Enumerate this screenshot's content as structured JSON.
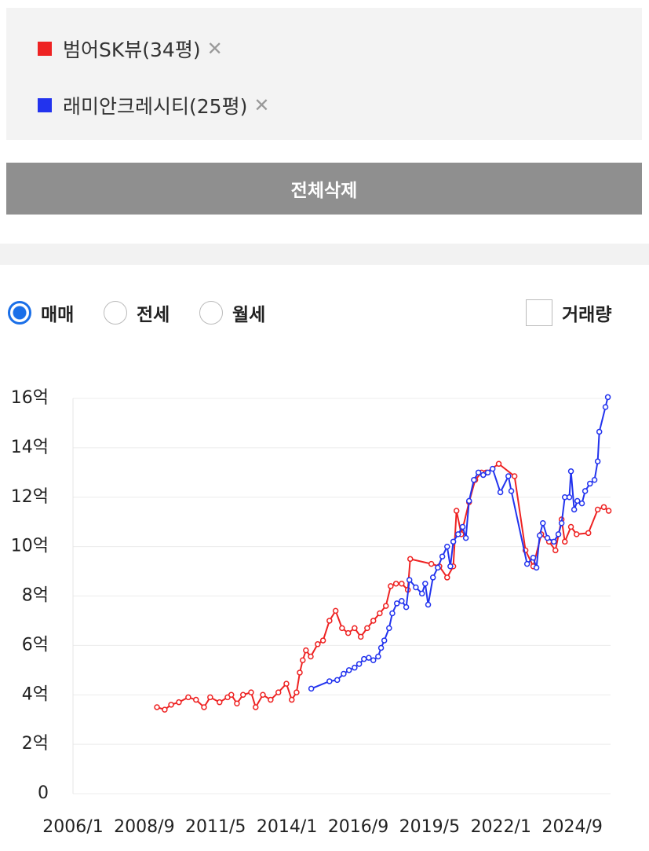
{
  "selected_items": [
    {
      "remove_icon": "✕"
    },
    {
      "remove_icon": "✕"
    }
  ],
  "clear_all_button": "전체삭제",
  "trade_types": [
    {
      "label": "매매",
      "checked": true
    },
    {
      "label": "전세",
      "checked": false
    },
    {
      "label": "월세",
      "checked": false
    }
  ],
  "volume_toggle": {
    "label": "거래량",
    "checked": false
  },
  "chart_data": {
    "type": "line",
    "xlim": [
      2006,
      2026.1
    ],
    "xticks": [
      {
        "value": 2006,
        "label": "2006/1"
      },
      {
        "value": 2008.667,
        "label": "2008/9"
      },
      {
        "value": 2011.333,
        "label": "2011/5"
      },
      {
        "value": 2014,
        "label": "2014/1"
      },
      {
        "value": 2016.667,
        "label": "2016/9"
      },
      {
        "value": 2019.333,
        "label": "2019/5"
      },
      {
        "value": 2022,
        "label": "2022/1"
      },
      {
        "value": 2024.667,
        "label": "2024/9"
      }
    ],
    "ylim": [
      0,
      16
    ],
    "yticks": [
      0,
      {
        "value": 2,
        "label": "2억"
      },
      {
        "value": 4,
        "label": "4억"
      },
      {
        "value": 6,
        "label": "6억"
      },
      {
        "value": 8,
        "label": "8억"
      },
      {
        "value": 10,
        "label": "10억"
      },
      {
        "value": 12,
        "label": "12억"
      },
      {
        "value": 14,
        "label": "14억"
      },
      {
        "value": 16,
        "label": "16억"
      }
    ],
    "grid": true,
    "series": [
      {
        "name": "범어SK뷰(34평)",
        "color": "#ee2222",
        "x": [
          2009.14,
          2009.43,
          2009.67,
          2009.96,
          2010.31,
          2010.6,
          2010.9,
          2011.13,
          2011.48,
          2011.78,
          2011.92,
          2012.13,
          2012.36,
          2012.66,
          2012.83,
          2013.1,
          2013.39,
          2013.68,
          2013.98,
          2014.18,
          2014.36,
          2014.48,
          2014.59,
          2014.71,
          2014.89,
          2015.15,
          2015.35,
          2015.59,
          2015.82,
          2016.06,
          2016.29,
          2016.53,
          2016.76,
          2017.0,
          2017.23,
          2017.47,
          2017.7,
          2017.88,
          2018.08,
          2018.29,
          2018.52,
          2018.61,
          2019.4,
          2019.7,
          2019.99,
          2020.22,
          2020.34,
          2020.52,
          2020.81,
          2021.04,
          2021.28,
          2021.45,
          2021.92,
          2022.51,
          2022.92,
          2023.21,
          2023.51,
          2023.8,
          2024.04,
          2024.27,
          2024.39,
          2024.62,
          2024.83,
          2025.27,
          2025.62,
          2025.85,
          2026.03
        ],
        "values": [
          3.5,
          3.4,
          3.6,
          3.7,
          3.9,
          3.8,
          3.5,
          3.9,
          3.7,
          3.9,
          4.0,
          3.65,
          4.0,
          4.1,
          3.5,
          4.0,
          3.8,
          4.1,
          4.45,
          3.8,
          4.1,
          4.9,
          5.4,
          5.8,
          5.55,
          6.05,
          6.2,
          7.0,
          7.4,
          6.7,
          6.5,
          6.7,
          6.35,
          6.7,
          7.0,
          7.3,
          7.6,
          8.4,
          8.5,
          8.5,
          8.25,
          9.5,
          9.3,
          9.2,
          8.75,
          9.2,
          11.45,
          10.5,
          11.8,
          12.7,
          13.0,
          13.0,
          13.35,
          12.85,
          9.85,
          9.2,
          10.5,
          10.2,
          9.85,
          11.1,
          10.2,
          10.8,
          10.5,
          10.55,
          11.5,
          11.6,
          11.45
        ]
      },
      {
        "name": "래미안크레시티(25평)",
        "color": "#2233ee",
        "x": [
          2014.91,
          2015.59,
          2015.88,
          2016.12,
          2016.32,
          2016.53,
          2016.7,
          2016.88,
          2017.06,
          2017.23,
          2017.41,
          2017.52,
          2017.64,
          2017.82,
          2017.94,
          2018.11,
          2018.29,
          2018.46,
          2018.58,
          2018.82,
          2019.05,
          2019.17,
          2019.28,
          2019.46,
          2019.64,
          2019.81,
          2019.99,
          2020.11,
          2020.22,
          2020.4,
          2020.57,
          2020.69,
          2020.81,
          2020.99,
          2021.16,
          2021.34,
          2021.51,
          2021.69,
          2021.98,
          2022.28,
          2022.39,
          2022.98,
          2023.21,
          2023.33,
          2023.45,
          2023.57,
          2023.74,
          2023.98,
          2024.15,
          2024.27,
          2024.39,
          2024.56,
          2024.62,
          2024.74,
          2024.86,
          2025.03,
          2025.15,
          2025.33,
          2025.5,
          2025.62,
          2025.68,
          2025.91,
          2026.0
        ],
        "values": [
          4.25,
          4.55,
          4.6,
          4.85,
          5.0,
          5.1,
          5.25,
          5.45,
          5.5,
          5.4,
          5.55,
          5.9,
          6.2,
          6.7,
          7.3,
          7.7,
          7.8,
          7.55,
          8.65,
          8.35,
          8.1,
          8.5,
          7.65,
          8.75,
          9.15,
          9.6,
          10.0,
          9.2,
          10.2,
          10.5,
          10.8,
          10.35,
          11.85,
          12.7,
          13.0,
          12.9,
          13.0,
          13.15,
          12.2,
          12.85,
          12.25,
          9.3,
          9.55,
          9.15,
          10.45,
          10.95,
          10.35,
          10.2,
          10.5,
          10.95,
          12.0,
          12.0,
          13.05,
          11.5,
          11.85,
          11.75,
          12.25,
          12.55,
          12.7,
          13.45,
          14.65,
          15.65,
          16.05
        ]
      }
    ]
  }
}
